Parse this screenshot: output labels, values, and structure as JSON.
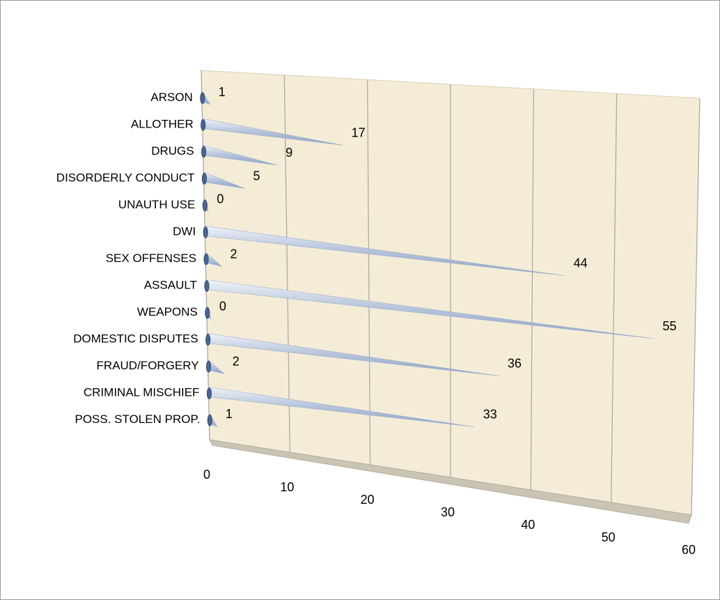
{
  "chart_data": {
    "type": "bar",
    "orientation": "horizontal",
    "style": "3d-cone",
    "title": "",
    "xlabel": "",
    "ylabel": "",
    "categories": [
      "ARSON",
      "ALLOTHER",
      "DRUGS",
      "DISORDERLY CONDUCT",
      "UNAUTH USE",
      "DWI",
      "SEX OFFENSES",
      "ASSAULT",
      "WEAPONS",
      "DOMESTIC DISPUTES",
      "FRAUD/FORGERY",
      "CRIMINAL MISCHIEF",
      "POSS. STOLEN PROP."
    ],
    "values": [
      1,
      17,
      9,
      5,
      0,
      44,
      2,
      55,
      0,
      36,
      2,
      33,
      1
    ],
    "xlim": [
      0,
      60
    ],
    "xticks": [
      "0",
      "10",
      "20",
      "30",
      "40",
      "50",
      "60"
    ],
    "grid": "vertical",
    "legend": "none",
    "colors": {
      "wall": "#f4ecd6",
      "floor": "#c9c4b4",
      "gridline": "#aaaaaa",
      "cone_light": "#cfd9ea",
      "cone_dark": "#8ea3c6",
      "base": "#4a6390"
    }
  }
}
